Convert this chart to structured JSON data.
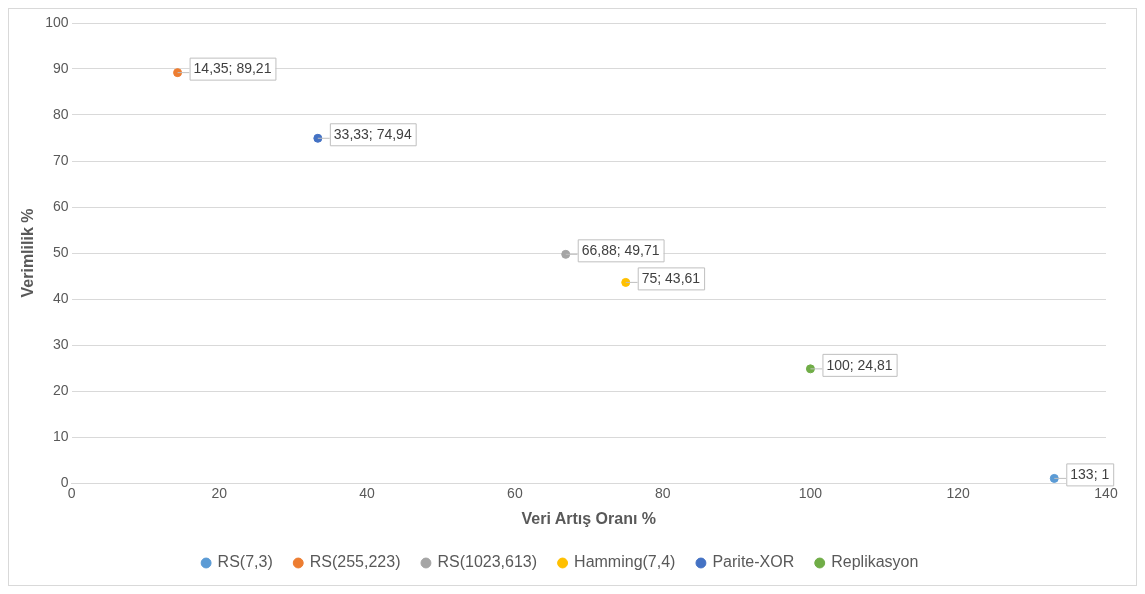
{
  "chart_data": {
    "type": "scatter",
    "xlabel": "Veri Artış Oranı %",
    "ylabel": "Verimlilik %",
    "xlim": [
      0,
      140
    ],
    "xticks": [
      0,
      20,
      40,
      60,
      80,
      100,
      120,
      140
    ],
    "ylim": [
      0,
      100
    ],
    "yticks": [
      0,
      10,
      20,
      30,
      40,
      50,
      60,
      70,
      80,
      90,
      100
    ],
    "grid": "y",
    "legend": "bottom",
    "marker": "circle",
    "series": [
      {
        "name": "RS(7,3)",
        "color": "#5b9bd5",
        "x": [
          133
        ],
        "values": [
          1
        ],
        "value_labels": [
          "133; 1"
        ]
      },
      {
        "name": "RS(255,223)",
        "color": "#ed7d31",
        "x": [
          14.35
        ],
        "values": [
          89.21
        ],
        "value_labels": [
          "14,35; 89,21"
        ]
      },
      {
        "name": "RS(1023,613)",
        "color": "#a5a5a5",
        "x": [
          66.88
        ],
        "values": [
          49.71
        ],
        "value_labels": [
          "66,88; 49,71"
        ]
      },
      {
        "name": "Hamming(7,4)",
        "color": "#ffc000",
        "x": [
          75
        ],
        "values": [
          43.61
        ],
        "value_labels": [
          "75; 43,61"
        ]
      },
      {
        "name": "Parite-XOR",
        "color": "#4472c4",
        "x": [
          33.33
        ],
        "values": [
          74.94
        ],
        "value_labels": [
          "33,33; 74,94"
        ]
      },
      {
        "name": "Replikasyon",
        "color": "#70ad47",
        "x": [
          100
        ],
        "values": [
          24.81
        ],
        "value_labels": [
          "100; 24,81"
        ]
      }
    ]
  }
}
